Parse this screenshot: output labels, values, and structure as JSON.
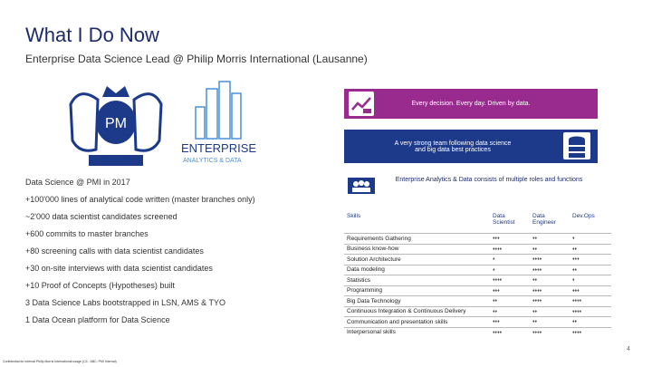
{
  "header": {
    "title": "What I Do Now",
    "subtitle": "Enterprise Data Science Lead @ Philip Morris International (Lausanne)"
  },
  "logos": {
    "enterprise": "ENTERPRISE",
    "analytics": "ANALYTICS & DATA"
  },
  "banners": [
    "Every decision. Every day. Driven by data.",
    "A very strong team following data science and big data best practices",
    "Enterprise Analytics & Data consists of multiple roles and functions"
  ],
  "bullets": [
    "Data Science @ PMI in 2017",
    "+100'000 lines of analytical code written (master branches only)",
    "~2'000 data scientist candidates screened",
    "+600 commits to master branches",
    "+80 screening calls with data scientist candidates",
    "+30 on-site interviews with data scientist candidates",
    "+10 Proof of Concepts (Hypotheses) built",
    "3 Data Science Labs bootstrapped in LSN, AMS & TYO",
    "1 Data Ocean platform for Data Science"
  ],
  "table": {
    "header": [
      "Skills",
      "Data Scientist",
      "Data Engineer",
      "Dev.Ops"
    ],
    "rows": [
      [
        "Requirements Gathering",
        "♦♦♦",
        "♦♦",
        "♦"
      ],
      [
        "Business know-how",
        "♦♦♦♦",
        "♦♦",
        "♦♦"
      ],
      [
        "Solution Architecture",
        "♦",
        "♦♦♦♦",
        "♦♦♦"
      ],
      [
        "Data modeling",
        "♦",
        "♦♦♦♦",
        "♦♦"
      ],
      [
        "Statistics",
        "♦♦♦♦",
        "♦♦",
        "♦"
      ],
      [
        "Programming",
        "♦♦♦",
        "♦♦♦♦",
        "♦♦♦"
      ],
      [
        "Big Data Technology",
        "♦♦",
        "♦♦♦♦",
        "♦♦♦♦"
      ],
      [
        "Continuous Integration & Continuous Delivery",
        "♦♦",
        "♦♦",
        "♦♦♦♦"
      ],
      [
        "Communication and presentation skills",
        "♦♦♦",
        "♦♦",
        "♦♦"
      ],
      [
        "Interpersonal skills",
        "♦♦♦♦",
        "♦♦♦♦",
        "♦♦♦♦"
      ]
    ]
  },
  "footer": {
    "note": "Confidential for internal Philip Morris International usage (C4 - ABC: PMI Internal)",
    "page": "4"
  }
}
